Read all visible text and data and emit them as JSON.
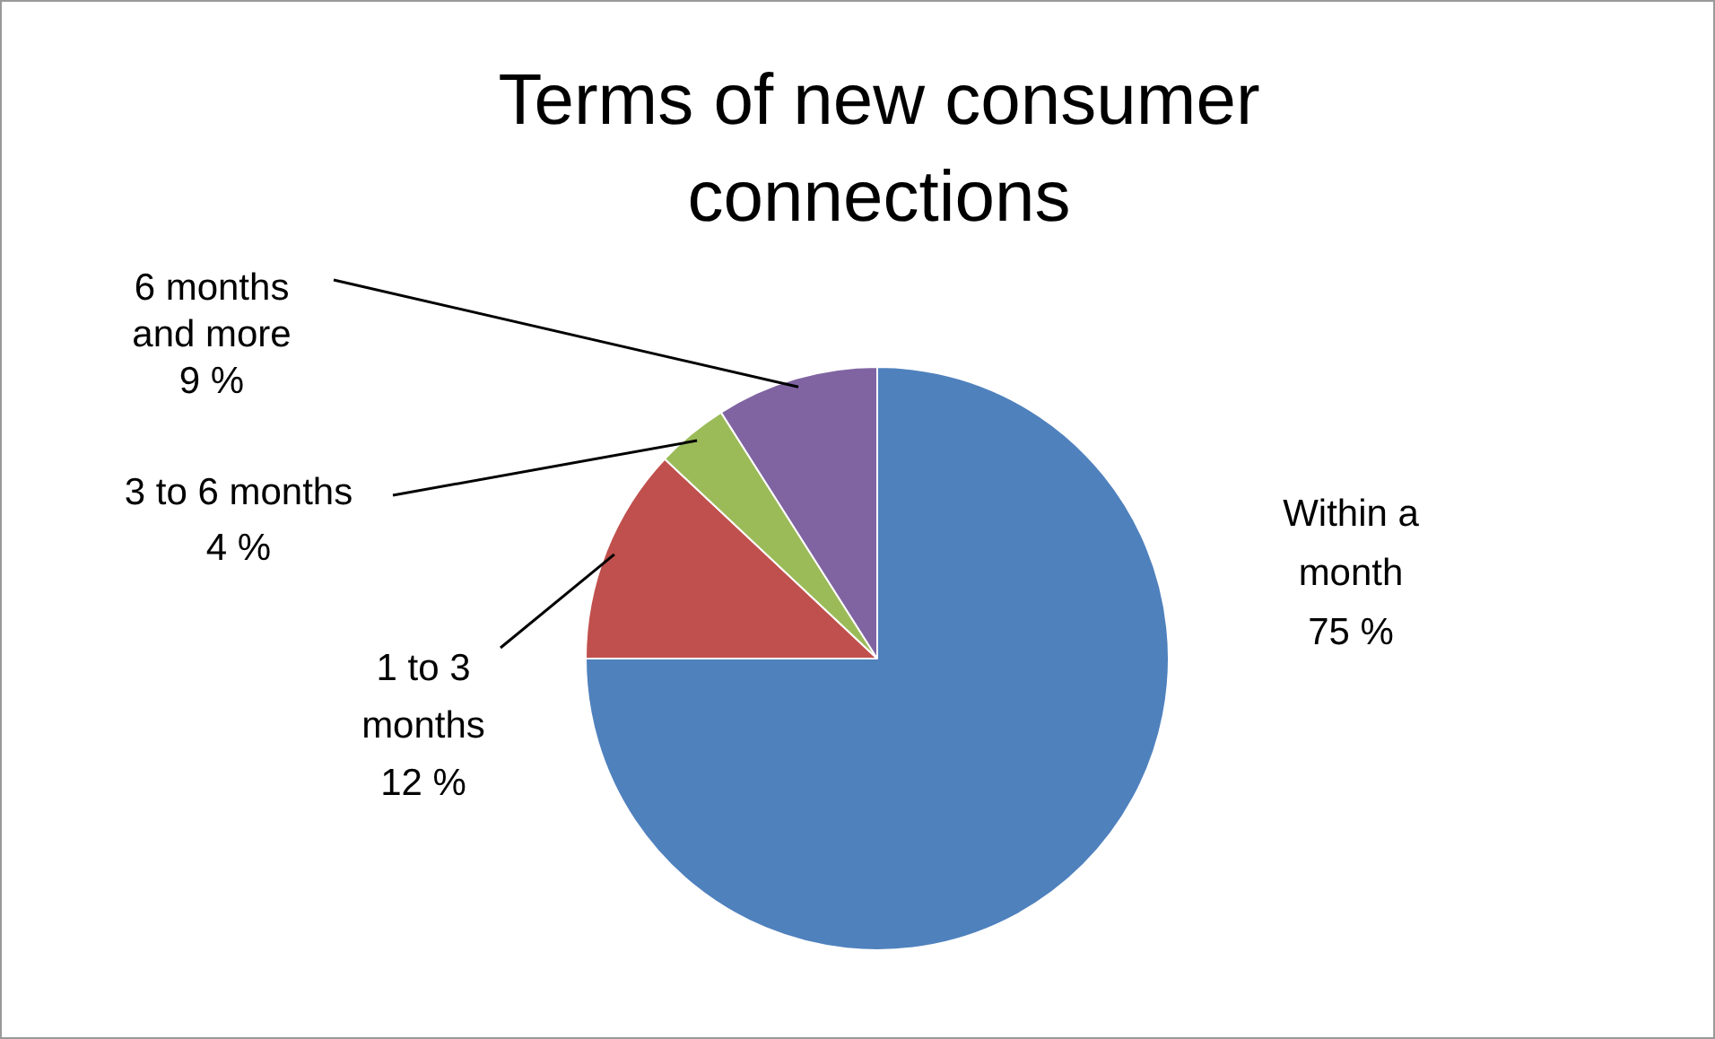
{
  "chart_data": {
    "type": "pie",
    "title": "Terms of new consumer connections",
    "categories": [
      "Within a month",
      "1 to 3 months",
      "3 to 6 months",
      "6 months and more"
    ],
    "values": [
      75,
      12,
      4,
      9
    ],
    "value_labels": [
      "75 %",
      "12 %",
      "4 %",
      "9 %"
    ],
    "colors": [
      "#4f81bd",
      "#c0504d",
      "#9bbb59",
      "#8064a2"
    ],
    "legend": false
  }
}
